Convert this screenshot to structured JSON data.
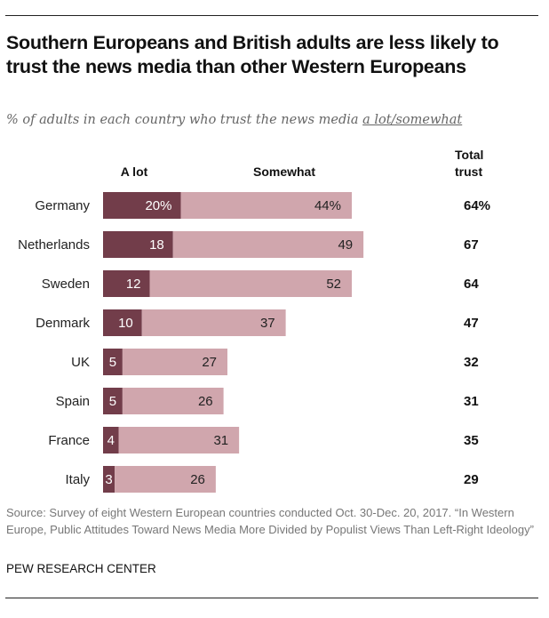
{
  "title": "Southern Europeans and British adults are less likely to trust the news media than other Western Europeans",
  "subtitle_prefix": "% of adults in each country who trust the news media ",
  "subtitle_underlined": "a lot/somewhat",
  "source": "Source: Survey of eight Western European countries conducted Oct. 30-Dec. 20, 2017. “In Western Europe, Public Attitudes Toward News Media More Divided by Populist Views Than Left-Right Ideology”",
  "brand": "PEW RESEARCH CENTER",
  "chart_data": {
    "type": "bar",
    "orientation": "horizontal",
    "stacked": true,
    "title": "Southern Europeans and British adults are less likely to trust the news media than other Western Europeans",
    "subtitle": "% of adults in each country who trust the news media a lot/somewhat",
    "categories": [
      "Germany",
      "Netherlands",
      "Sweden",
      "Denmark",
      "UK",
      "Spain",
      "France",
      "Italy"
    ],
    "series": [
      {
        "name": "A lot",
        "color": "#723d4a",
        "values": [
          20,
          18,
          12,
          10,
          5,
          5,
          4,
          3
        ],
        "labels": [
          "20%",
          "18",
          "12",
          "10",
          "5",
          "5",
          "4",
          "3"
        ]
      },
      {
        "name": "Somewhat",
        "color": "#d0a6ad",
        "values": [
          44,
          49,
          52,
          37,
          27,
          26,
          31,
          26
        ],
        "labels": [
          "44%",
          "49",
          "52",
          "37",
          "27",
          "26",
          "31",
          "26"
        ]
      }
    ],
    "total_column": {
      "header": [
        "Total",
        "trust"
      ],
      "values": [
        64,
        67,
        64,
        47,
        32,
        31,
        35,
        29
      ],
      "labels": [
        "64%",
        "67",
        "64",
        "47",
        "32",
        "31",
        "35",
        "29"
      ]
    },
    "xlim": [
      0,
      70
    ],
    "grid": false,
    "legend": "column headers above bars"
  }
}
